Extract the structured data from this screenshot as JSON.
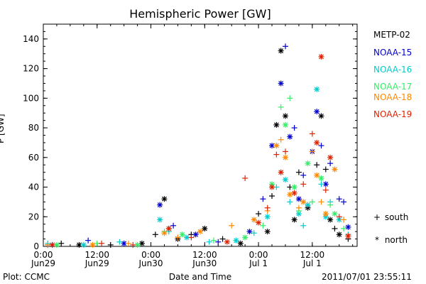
{
  "chart_data": {
    "type": "scatter",
    "title": "Hemispheric Power [GW]",
    "ylabel": "P [GW]",
    "xlabel": "Date and Time",
    "ylim": [
      0,
      150
    ],
    "xlim_hours": [
      0,
      70
    ],
    "y_ticks": [
      0,
      20,
      40,
      60,
      80,
      100,
      120,
      140
    ],
    "x_ticks": [
      {
        "hour": 0,
        "line1": "0:00",
        "line2": "Jun29"
      },
      {
        "hour": 12,
        "line1": "12:00",
        "line2": "Jun29"
      },
      {
        "hour": 24,
        "line1": "0:00",
        "line2": "Jun30"
      },
      {
        "hour": 36,
        "line1": "12:00",
        "line2": "Jun30"
      },
      {
        "hour": 48,
        "line1": "0:00",
        "line2": "Jul 1"
      },
      {
        "hour": 60,
        "line1": "12:00",
        "line2": "Jul 1"
      }
    ],
    "symbols": {
      "south": "+",
      "north": "*"
    },
    "series": [
      {
        "name": "METP-02",
        "color": "#000000",
        "points": [
          [
            1,
            1,
            "+"
          ],
          [
            4,
            2,
            "+"
          ],
          [
            8,
            1,
            "*"
          ],
          [
            15,
            1,
            "+"
          ],
          [
            22,
            2,
            "*"
          ],
          [
            25,
            8,
            "+"
          ],
          [
            27,
            32,
            "*"
          ],
          [
            28,
            12,
            "+"
          ],
          [
            30,
            5,
            "*"
          ],
          [
            33,
            8,
            "+"
          ],
          [
            36,
            12,
            "*"
          ],
          [
            40,
            5,
            "+"
          ],
          [
            44,
            2,
            "*"
          ],
          [
            48,
            22,
            "+"
          ],
          [
            50,
            10,
            "*"
          ],
          [
            51,
            34,
            "+"
          ],
          [
            52,
            82,
            "*"
          ],
          [
            53,
            132,
            "*"
          ],
          [
            54,
            88,
            "*"
          ],
          [
            55,
            40,
            "+"
          ],
          [
            56,
            18,
            "*"
          ],
          [
            57,
            50,
            "+"
          ],
          [
            59,
            26,
            "*"
          ],
          [
            61,
            55,
            "+"
          ],
          [
            62,
            88,
            "*"
          ],
          [
            63,
            52,
            "+"
          ],
          [
            64,
            18,
            "*"
          ],
          [
            65,
            12,
            "+"
          ],
          [
            66,
            8,
            "*"
          ],
          [
            68,
            5,
            "+"
          ]
        ]
      },
      {
        "name": "NOAA-15",
        "color": "#0000cc",
        "points": [
          [
            2,
            1,
            "+"
          ],
          [
            10,
            4,
            "+"
          ],
          [
            18,
            2,
            "*"
          ],
          [
            26,
            28,
            "*"
          ],
          [
            29,
            14,
            "+"
          ],
          [
            34,
            8,
            "*"
          ],
          [
            39,
            3,
            "+"
          ],
          [
            46,
            10,
            "*"
          ],
          [
            49,
            32,
            "+"
          ],
          [
            51,
            68,
            "*"
          ],
          [
            53,
            110,
            "*"
          ],
          [
            54,
            135,
            "+"
          ],
          [
            55,
            74,
            "*"
          ],
          [
            56,
            80,
            "+"
          ],
          [
            57,
            32,
            "*"
          ],
          [
            58,
            48,
            "+"
          ],
          [
            60,
            64,
            "*"
          ],
          [
            61,
            91,
            "*"
          ],
          [
            62,
            68,
            "+"
          ],
          [
            63,
            42,
            "*"
          ],
          [
            64,
            56,
            "+"
          ],
          [
            66,
            32,
            "+"
          ],
          [
            67,
            30,
            "+"
          ],
          [
            68,
            13,
            "*"
          ]
        ]
      },
      {
        "name": "NOAA-16",
        "color": "#00cccc",
        "points": [
          [
            1,
            2,
            "+"
          ],
          [
            9,
            1,
            "*"
          ],
          [
            17,
            3,
            "+"
          ],
          [
            26,
            18,
            "*"
          ],
          [
            28,
            10,
            "+"
          ],
          [
            32,
            6,
            "*"
          ],
          [
            37,
            3,
            "+"
          ],
          [
            43,
            4,
            "*"
          ],
          [
            47,
            9,
            "+"
          ],
          [
            50,
            20,
            "*"
          ],
          [
            52,
            40,
            "+"
          ],
          [
            54,
            45,
            "*"
          ],
          [
            55,
            30,
            "+"
          ],
          [
            57,
            22,
            "*"
          ],
          [
            58,
            14,
            "+"
          ],
          [
            59,
            28,
            "*"
          ],
          [
            61,
            106,
            "*"
          ],
          [
            62,
            42,
            "+"
          ],
          [
            63,
            20,
            "*"
          ],
          [
            64,
            30,
            "+"
          ],
          [
            66,
            18,
            "*"
          ],
          [
            68,
            8,
            "+"
          ]
        ]
      },
      {
        "name": "NOAA-17",
        "color": "#33ee66",
        "points": [
          [
            3,
            1,
            "*"
          ],
          [
            12,
            2,
            "+"
          ],
          [
            21,
            1,
            "*"
          ],
          [
            27,
            10,
            "+"
          ],
          [
            31,
            8,
            "*"
          ],
          [
            38,
            4,
            "+"
          ],
          [
            45,
            6,
            "*"
          ],
          [
            49,
            14,
            "+"
          ],
          [
            51,
            42,
            "*"
          ],
          [
            53,
            94,
            "+"
          ],
          [
            54,
            82,
            "*"
          ],
          [
            55,
            100,
            "+"
          ],
          [
            56,
            40,
            "*"
          ],
          [
            57,
            24,
            "+"
          ],
          [
            59,
            56,
            "*"
          ],
          [
            60,
            30,
            "+"
          ],
          [
            62,
            46,
            "*"
          ],
          [
            64,
            28,
            "+"
          ],
          [
            65,
            22,
            "*"
          ],
          [
            67,
            12,
            "+"
          ]
        ]
      },
      {
        "name": "NOAA-18",
        "color": "#ff8800",
        "points": [
          [
            1,
            1,
            "+"
          ],
          [
            11,
            1,
            "*"
          ],
          [
            19,
            2,
            "+"
          ],
          [
            27,
            9,
            "*"
          ],
          [
            30,
            6,
            "+"
          ],
          [
            35,
            10,
            "*"
          ],
          [
            42,
            14,
            "+"
          ],
          [
            47,
            18,
            "*"
          ],
          [
            50,
            24,
            "+"
          ],
          [
            52,
            68,
            "*"
          ],
          [
            53,
            72,
            "+"
          ],
          [
            54,
            60,
            "*"
          ],
          [
            55,
            35,
            "*"
          ],
          [
            57,
            26,
            "+"
          ],
          [
            58,
            30,
            "*"
          ],
          [
            60,
            64,
            "+"
          ],
          [
            61,
            48,
            "*"
          ],
          [
            62,
            30,
            "+"
          ],
          [
            63,
            22,
            "*"
          ],
          [
            65,
            52,
            "*"
          ],
          [
            67,
            18,
            "+"
          ]
        ]
      },
      {
        "name": "NOAA-19",
        "color": "#dd2200",
        "points": [
          [
            2,
            1,
            "*"
          ],
          [
            13,
            2,
            "+"
          ],
          [
            20,
            1,
            "+"
          ],
          [
            28,
            12,
            "*"
          ],
          [
            33,
            6,
            "+"
          ],
          [
            41,
            3,
            "*"
          ],
          [
            45,
            46,
            "+"
          ],
          [
            48,
            16,
            "*"
          ],
          [
            50,
            26,
            "+"
          ],
          [
            51,
            40,
            "*"
          ],
          [
            52,
            62,
            "+"
          ],
          [
            53,
            50,
            "*"
          ],
          [
            54,
            64,
            "+"
          ],
          [
            56,
            36,
            "*"
          ],
          [
            58,
            42,
            "+"
          ],
          [
            60,
            76,
            "+"
          ],
          [
            61,
            70,
            "*"
          ],
          [
            62,
            128,
            "*"
          ],
          [
            63,
            38,
            "+"
          ],
          [
            64,
            60,
            "*"
          ],
          [
            66,
            20,
            "+"
          ],
          [
            68,
            7,
            "*"
          ]
        ]
      }
    ]
  },
  "legend_symbols": [
    {
      "sym": "+",
      "label": "south"
    },
    {
      "sym": "*",
      "label": "north"
    }
  ],
  "footer": {
    "left": "Plot: CCMC",
    "right": "2011/07/01  23:55:11"
  }
}
